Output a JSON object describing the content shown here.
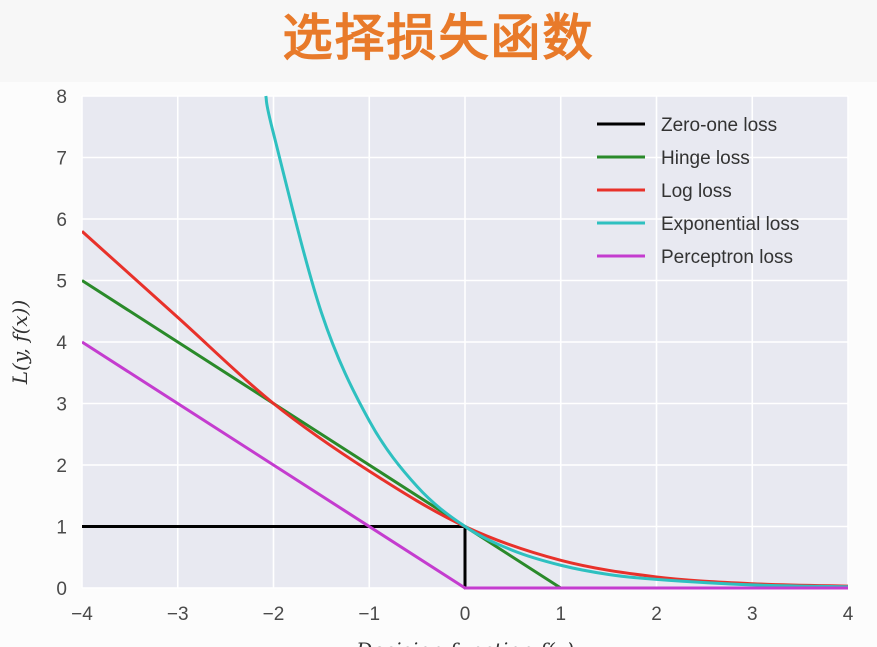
{
  "slide": {
    "title": "选择损失函数",
    "title_color": "#e87a2a"
  },
  "chart_data": {
    "type": "line",
    "title": "",
    "ylabel": "L(y, f(x))",
    "xlabel": "Decision function f(x)",
    "xlim": [
      -4,
      4
    ],
    "ylim": [
      0,
      8
    ],
    "x_ticks": [
      -4,
      -3,
      -2,
      -1,
      0,
      1,
      2,
      3,
      4
    ],
    "x_tick_labels": [
      "−4",
      "−3",
      "−2",
      "−1",
      "0",
      "1",
      "2",
      "3",
      "4"
    ],
    "y_ticks": [
      0,
      1,
      2,
      3,
      4,
      5,
      6,
      7,
      8
    ],
    "y_tick_labels": [
      "0",
      "1",
      "2",
      "3",
      "4",
      "5",
      "6",
      "7",
      "8"
    ],
    "grid": true,
    "background": "#e8e9f1",
    "legend_position": "top-right",
    "series": [
      {
        "name": "Zero-one loss",
        "color": "#000000",
        "x": [
          -4,
          0,
          0,
          4
        ],
        "y": [
          1,
          1,
          0,
          0
        ]
      },
      {
        "name": "Hinge loss",
        "color": "#2a8a2a",
        "x": [
          -4,
          -3,
          -2,
          -1,
          0,
          1,
          2,
          3,
          4
        ],
        "y": [
          5,
          4,
          3,
          2,
          1,
          0,
          0,
          0,
          0
        ]
      },
      {
        "name": "Log loss",
        "color": "#e8312a",
        "x": [
          -4,
          -3,
          -2,
          -1,
          0,
          1,
          2,
          3,
          4
        ],
        "y": [
          5.8,
          4.4,
          3.0,
          1.9,
          1.0,
          0.45,
          0.18,
          0.07,
          0.03
        ]
      },
      {
        "name": "Exponential loss",
        "color": "#2ec0c0",
        "x": [
          -2.08,
          -2,
          -1.5,
          -1,
          -0.5,
          0,
          0.5,
          1,
          1.5,
          2,
          3,
          4
        ],
        "y": [
          8.0,
          7.39,
          4.48,
          2.72,
          1.65,
          1.0,
          0.61,
          0.37,
          0.22,
          0.14,
          0.05,
          0.02
        ]
      },
      {
        "name": "Perceptron loss",
        "color": "#c43ccf",
        "x": [
          -4,
          0,
          4
        ],
        "y": [
          4,
          0,
          0
        ]
      }
    ]
  }
}
